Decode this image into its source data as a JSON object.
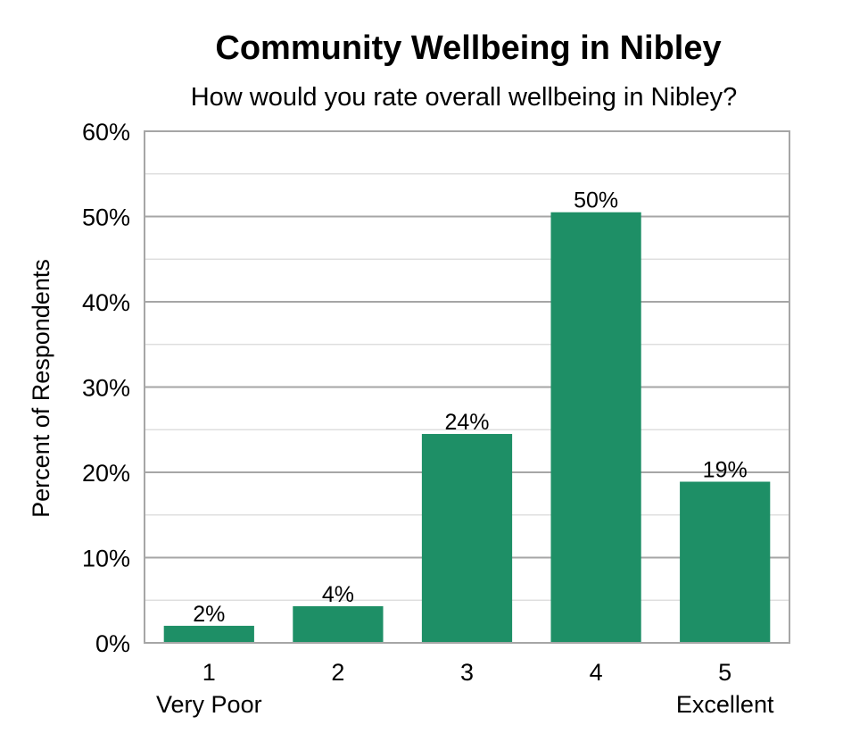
{
  "chart_data": {
    "type": "bar",
    "title": "Community Wellbeing in Nibley",
    "subtitle": "How would you rate overall wellbeing in Nibley?",
    "xlabel": "",
    "ylabel": "Percent of Respondents",
    "categories": [
      "1",
      "2",
      "3",
      "4",
      "5"
    ],
    "category_sublabels": [
      "Very Poor",
      "",
      "",
      "",
      "Excellent"
    ],
    "values": [
      2,
      4.3,
      24.5,
      50.5,
      18.9
    ],
    "data_labels": [
      "2%",
      "4%",
      "24%",
      "50%",
      "19%"
    ],
    "ylim": [
      0,
      60
    ],
    "yticks": [
      "0%",
      "10%",
      "20%",
      "30%",
      "40%",
      "50%",
      "60%"
    ],
    "grid": true,
    "legend": "none",
    "colors": {
      "bar": "#1e8f66",
      "grid_major": "#a6a6a6",
      "grid_minor": "#d9d9d9",
      "frame": "#a6a6a6"
    }
  }
}
